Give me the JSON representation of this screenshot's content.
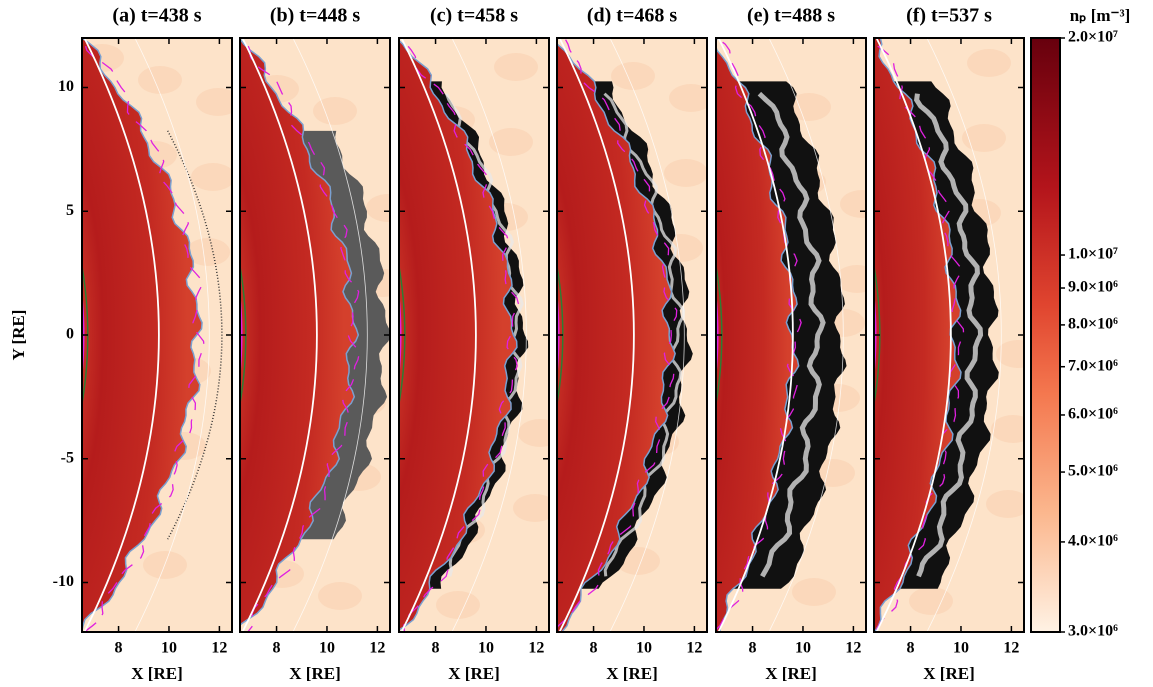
{
  "chart_data": {
    "type": "image",
    "panels": [
      {
        "title": "(a) t=438 s"
      },
      {
        "title": "(b) t=448 s"
      },
      {
        "title": "(c) t=458 s"
      },
      {
        "title": "(d) t=468 s"
      },
      {
        "title": "(e) t=488 s"
      },
      {
        "title": "(f) t=537 s"
      }
    ],
    "xlabel": "X [RE]",
    "ylabel": "Y [RE]",
    "xlim": [
      6.55,
      12.5
    ],
    "xticks": [
      8,
      10,
      12
    ],
    "ylim": [
      -12,
      12
    ],
    "yticks": [
      -10,
      -5,
      0,
      5,
      10
    ],
    "colorbar": {
      "label": "nₚ [m⁻³]",
      "log_scale": true,
      "lim": [
        3000000,
        20000000
      ],
      "ticks": [
        {
          "value": 20000000,
          "label": "2.0×10⁷"
        },
        {
          "value": 10000000,
          "label": "1.0×10⁷"
        },
        {
          "value": 9000000,
          "label": "9.0×10⁶"
        },
        {
          "value": 8000000,
          "label": "8.0×10⁶"
        },
        {
          "value": 7000000,
          "label": "7.0×10⁶"
        },
        {
          "value": 6000000,
          "label": "6.0×10⁶"
        },
        {
          "value": 5000000,
          "label": "5.0×10⁶"
        },
        {
          "value": 4000000,
          "label": "4.0×10⁶"
        },
        {
          "value": 3000000,
          "label": "3.0×10⁶"
        }
      ]
    }
  }
}
